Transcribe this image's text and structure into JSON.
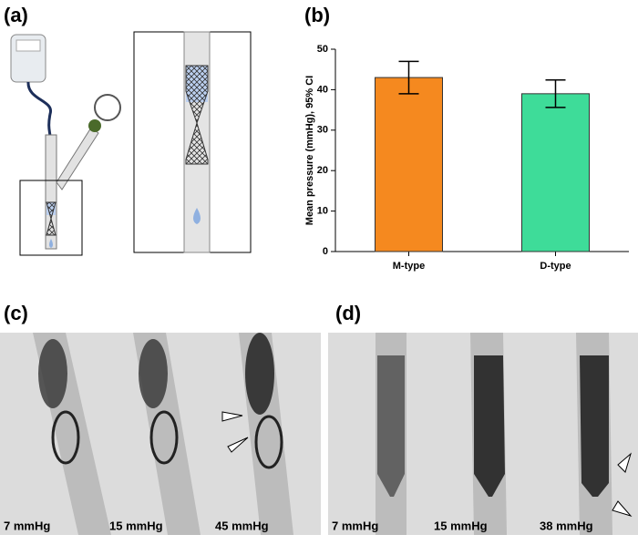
{
  "panel_labels": {
    "a": "(a)",
    "b": "(b)",
    "c": "(c)",
    "d": "(d)"
  },
  "chart_data": {
    "type": "bar",
    "y_label": "Mean pressure (mmHg), 95% CI",
    "categories": [
      "M-type",
      "D-type"
    ],
    "values": [
      43,
      39
    ],
    "errors": [
      4,
      3.4
    ],
    "colors": [
      "#f5891f",
      "#3edc99"
    ],
    "ylim": [
      0,
      50
    ],
    "yticks": [
      0,
      10,
      20,
      30,
      40,
      50
    ]
  },
  "photos": {
    "c": [
      "7 mmHg",
      "15 mmHg",
      "45 mmHg"
    ],
    "d": [
      "7 mmHg",
      "15 mmHg",
      "38 mmHg"
    ]
  }
}
